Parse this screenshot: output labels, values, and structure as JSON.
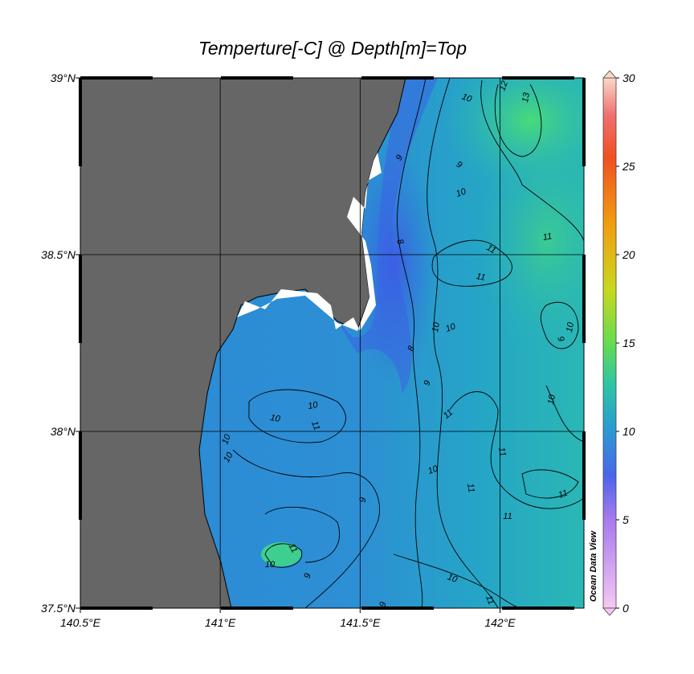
{
  "map": {
    "title": "Temperture[-C] @ Depth[m]=Top",
    "xlim": [
      140.5,
      142.3
    ],
    "ylim": [
      37.5,
      39
    ],
    "xticks": [
      {
        "value": 140.5,
        "label": "140.5°E"
      },
      {
        "value": 141,
        "label": "141°E"
      },
      {
        "value": 141.5,
        "label": "141.5°E"
      },
      {
        "value": 142,
        "label": "142°E"
      }
    ],
    "yticks": [
      {
        "value": 39,
        "label": "39°N"
      },
      {
        "value": 38.5,
        "label": "38.5°N"
      },
      {
        "value": 38,
        "label": "38°N"
      },
      {
        "value": 37.5,
        "label": "37.5°N"
      }
    ],
    "colorbar": {
      "lim": [
        0,
        30
      ],
      "ticks": [
        0,
        5,
        10,
        15,
        20,
        25,
        30
      ]
    },
    "contour_labels": [
      13,
      12,
      10,
      9,
      9,
      10,
      11,
      11,
      11,
      8,
      10,
      10,
      10,
      9,
      8,
      9,
      10,
      11,
      10,
      10,
      11,
      10,
      10,
      11,
      10,
      11,
      9,
      11,
      11,
      11,
      10,
      9,
      10,
      11,
      9
    ],
    "watermark": "Ocean Data View"
  }
}
